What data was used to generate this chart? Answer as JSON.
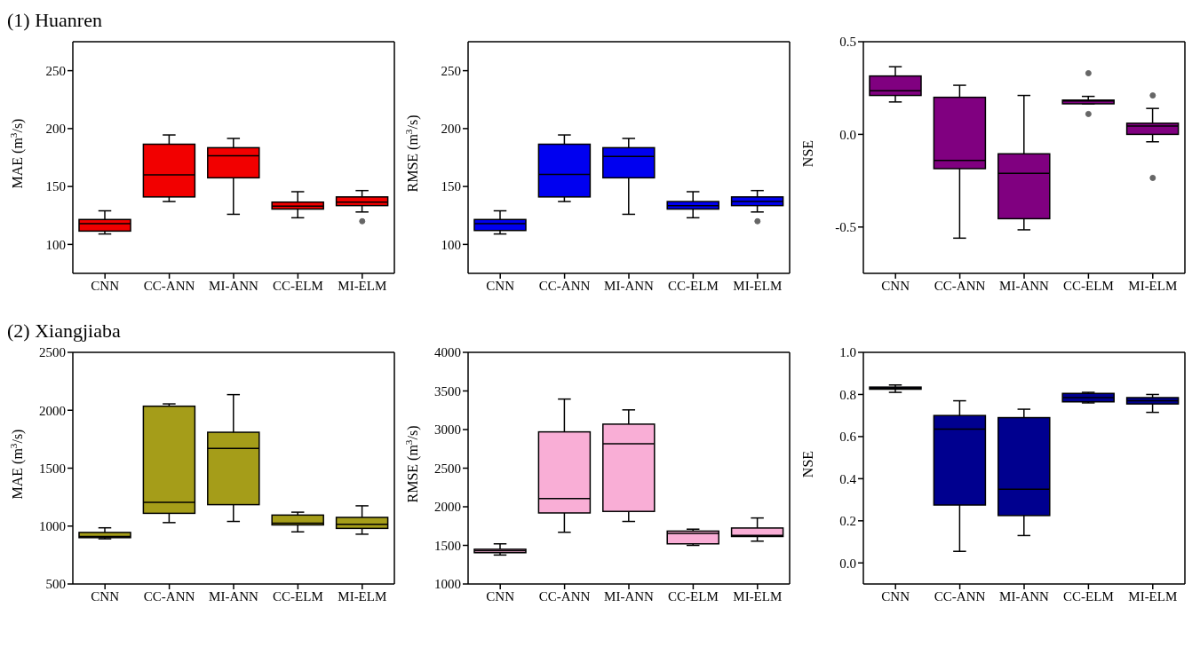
{
  "chart_data": [
    {
      "type": "box",
      "title": "(1) Huanren",
      "ylabel": "MAE (m$^{3}$/s)",
      "categories": [
        "CNN",
        "CC-ANN",
        "MI-ANN",
        "CC-ELM",
        "MI-ELM"
      ],
      "ylim": [
        75,
        275
      ],
      "yticks": [
        100,
        150,
        200,
        250
      ],
      "grid": false,
      "series": [
        {
          "color": "#f20000",
          "boxes": [
            {
              "low": 109,
              "q1": 111.5,
              "median": 118,
              "q3": 121.5,
              "high": 129
            },
            {
              "low": 137,
              "q1": 141,
              "median": 160,
              "q3": 186.5,
              "high": 194.5
            },
            {
              "low": 126,
              "q1": 157.5,
              "median": 176.5,
              "q3": 183.5,
              "high": 191.5
            },
            {
              "low": 123,
              "q1": 130.5,
              "median": 133,
              "q3": 136.5,
              "high": 145.5
            },
            {
              "low": 128,
              "q1": 133.5,
              "median": 136.5,
              "q3": 141,
              "high": 146.5,
              "outliers": [
                120
              ]
            }
          ]
        }
      ]
    },
    {
      "type": "box",
      "ylabel": "RMSE (m$^{3}$/s)",
      "categories": [
        "CNN",
        "CC-ANN",
        "MI-ANN",
        "CC-ELM",
        "MI-ELM"
      ],
      "ylim": [
        75,
        275
      ],
      "yticks": [
        100,
        150,
        200,
        250
      ],
      "grid": false,
      "series": [
        {
          "color": "#0000f0",
          "boxes": [
            {
              "low": 109,
              "q1": 112,
              "median": 118,
              "q3": 121.5,
              "high": 129
            },
            {
              "low": 137,
              "q1": 141,
              "median": 160.5,
              "q3": 186.5,
              "high": 194.5
            },
            {
              "low": 126,
              "q1": 157.5,
              "median": 176,
              "q3": 183.5,
              "high": 191.5
            },
            {
              "low": 123,
              "q1": 130.5,
              "median": 133.5,
              "q3": 137,
              "high": 145.5
            },
            {
              "low": 128,
              "q1": 133.5,
              "median": 137,
              "q3": 141,
              "high": 146.5,
              "outliers": [
                120
              ]
            }
          ]
        }
      ]
    },
    {
      "type": "box",
      "ylabel": "NSE",
      "categories": [
        "CNN",
        "CC-ANN",
        "MI-ANN",
        "CC-ELM",
        "MI-ELM"
      ],
      "ylim": [
        -0.75,
        0.5
      ],
      "yticks": [
        {
          "value": -0.5,
          "label": "-0.5"
        },
        {
          "value": 0,
          "label": "0.0"
        },
        0.5
      ],
      "grid": false,
      "series": [
        {
          "color": "#800080",
          "boxes": [
            {
              "low": 0.175,
              "q1": 0.21,
              "median": 0.235,
              "q3": 0.315,
              "high": 0.365
            },
            {
              "low": -0.56,
              "q1": -0.185,
              "median": -0.14,
              "q3": 0.2,
              "high": 0.265
            },
            {
              "low": -0.515,
              "q1": -0.455,
              "median": -0.21,
              "q3": -0.105,
              "high": 0.21
            },
            {
              "low": 0.165,
              "q1": 0.165,
              "median": 0.18,
              "q3": 0.185,
              "high": 0.205,
              "outliers": [
                0.33,
                0.11
              ]
            },
            {
              "low": -0.04,
              "q1": 0,
              "median": 0.045,
              "q3": 0.06,
              "high": 0.14,
              "outliers": [
                0.21,
                -0.235
              ]
            }
          ]
        }
      ]
    },
    {
      "type": "box",
      "title": "(2) Xiangjiaba",
      "ylabel": "MAE (m$^{3}$/s)",
      "categories": [
        "CNN",
        "CC-ANN",
        "MI-ANN",
        "CC-ELM",
        "MI-ELM"
      ],
      "ylim": [
        500,
        2500
      ],
      "yticks": [
        500,
        1000,
        1500,
        2000,
        2500
      ],
      "grid": false,
      "series": [
        {
          "color": "#a59d19",
          "boxes": [
            {
              "low": 890,
              "q1": 900,
              "median": 910,
              "q3": 945,
              "high": 985
            },
            {
              "low": 1030,
              "q1": 1110,
              "median": 1205,
              "q3": 2035,
              "high": 2055
            },
            {
              "low": 1040,
              "q1": 1185,
              "median": 1670,
              "q3": 1810,
              "high": 2135
            },
            {
              "low": 950,
              "q1": 1010,
              "median": 1025,
              "q3": 1095,
              "high": 1120
            },
            {
              "low": 930,
              "q1": 980,
              "median": 1015,
              "q3": 1075,
              "high": 1175
            }
          ]
        }
      ]
    },
    {
      "type": "box",
      "ylabel": "RMSE (m$^{3}$/s)",
      "categories": [
        "CNN",
        "CC-ANN",
        "MI-ANN",
        "CC-ELM",
        "MI-ELM"
      ],
      "ylim": [
        1000,
        4000
      ],
      "yticks": [
        1000,
        1500,
        2000,
        2500,
        3000,
        3500,
        4000
      ],
      "grid": false,
      "series": [
        {
          "color": "#f9aed6",
          "boxes": [
            {
              "low": 1375,
              "q1": 1405,
              "median": 1430,
              "q3": 1450,
              "high": 1520
            },
            {
              "low": 1670,
              "q1": 1920,
              "median": 2105,
              "q3": 2970,
              "high": 3395
            },
            {
              "low": 1810,
              "q1": 1940,
              "median": 2815,
              "q3": 3070,
              "high": 3255
            },
            {
              "low": 1500,
              "q1": 1520,
              "median": 1655,
              "q3": 1685,
              "high": 1710
            },
            {
              "low": 1555,
              "q1": 1615,
              "median": 1630,
              "q3": 1725,
              "high": 1855
            }
          ]
        }
      ]
    },
    {
      "type": "box",
      "ylabel": "NSE",
      "categories": [
        "CNN",
        "CC-ANN",
        "MI-ANN",
        "CC-ELM",
        "MI-ELM"
      ],
      "ylim": [
        -0.1,
        1.0
      ],
      "yticks": [
        {
          "value": 0,
          "label": "0.0"
        },
        {
          "value": 0.2,
          "label": "0.2"
        },
        {
          "value": 0.4,
          "label": "0.4"
        },
        {
          "value": 0.6,
          "label": "0.6"
        },
        {
          "value": 0.8,
          "label": "0.8"
        },
        {
          "value": 1,
          "label": "1.0"
        }
      ],
      "grid": false,
      "series": [
        {
          "color": "#00008f",
          "boxes": [
            {
              "low": 0.81,
              "q1": 0.825,
              "median": 0.83,
              "q3": 0.835,
              "high": 0.845
            },
            {
              "low": 0.055,
              "q1": 0.275,
              "median": 0.635,
              "q3": 0.7,
              "high": 0.77
            },
            {
              "low": 0.13,
              "q1": 0.225,
              "median": 0.35,
              "q3": 0.69,
              "high": 0.73
            },
            {
              "low": 0.76,
              "q1": 0.765,
              "median": 0.785,
              "q3": 0.805,
              "high": 0.81
            },
            {
              "low": 0.715,
              "q1": 0.755,
              "median": 0.77,
              "q3": 0.785,
              "high": 0.8
            }
          ]
        }
      ]
    }
  ]
}
